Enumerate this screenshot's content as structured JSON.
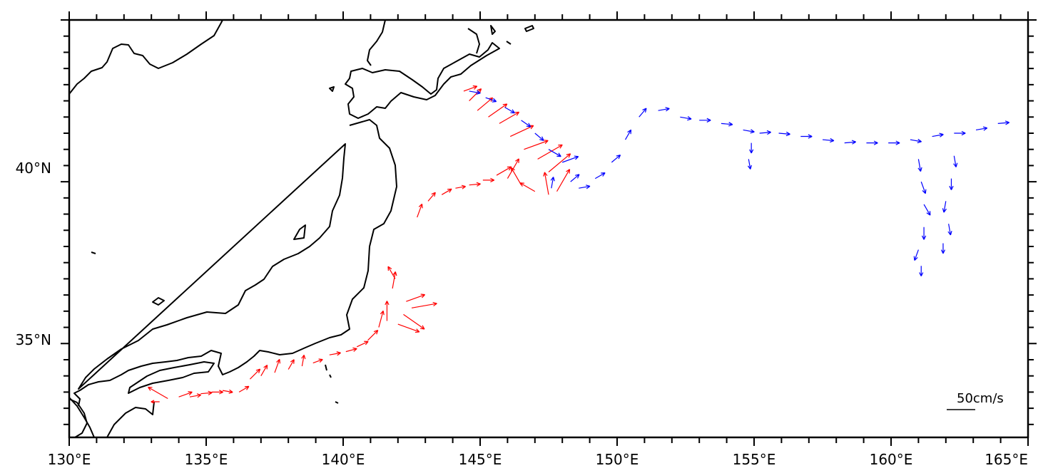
{
  "map": {
    "type": "vector_field_map",
    "region": "Japan and Northwest Pacific",
    "lon_range": [
      130,
      165
    ],
    "lat_range": [
      32.1,
      45.0
    ],
    "x_tick_labels": [
      "130°E",
      "135°E",
      "140°E",
      "145°E",
      "150°E",
      "155°E",
      "160°E",
      "165°E"
    ],
    "y_tick_labels": [
      "35°N",
      "40°N"
    ],
    "scale": {
      "label": "50cm/s",
      "speed_cm_s": 50
    },
    "colors": {
      "series_a": "#ff0000",
      "series_b": "#0000ff",
      "coast": "#000000"
    }
  },
  "chart_data": {
    "type": "scatter",
    "xlabel": "",
    "ylabel": "",
    "xlim": [
      130,
      165
    ],
    "ylim": [
      32.1,
      45.0
    ],
    "series": [
      {
        "color": "#ff0000",
        "points": [
          [
            133.3,
            33.2,
            180,
            15
          ],
          [
            133.6,
            33.3,
            150,
            40
          ],
          [
            134.0,
            33.35,
            20,
            25
          ],
          [
            134.4,
            33.35,
            10,
            20
          ],
          [
            134.8,
            33.45,
            5,
            20
          ],
          [
            135.2,
            33.5,
            0,
            20
          ],
          [
            135.6,
            33.55,
            -10,
            18
          ],
          [
            136.2,
            33.5,
            30,
            20
          ],
          [
            136.6,
            33.9,
            45,
            25
          ],
          [
            137.0,
            34.0,
            60,
            22
          ],
          [
            137.5,
            34.1,
            70,
            25
          ],
          [
            138.0,
            34.2,
            60,
            20
          ],
          [
            138.5,
            34.3,
            80,
            20
          ],
          [
            138.9,
            34.4,
            20,
            18
          ],
          [
            139.5,
            34.65,
            10,
            20
          ],
          [
            140.1,
            34.75,
            15,
            20
          ],
          [
            140.5,
            34.9,
            25,
            22
          ],
          [
            140.9,
            35.1,
            45,
            25
          ],
          [
            141.3,
            35.5,
            75,
            30
          ],
          [
            141.6,
            35.7,
            90,
            35
          ],
          [
            142.0,
            35.6,
            -20,
            40
          ],
          [
            142.2,
            35.9,
            -35,
            45
          ],
          [
            142.5,
            36.1,
            10,
            45
          ],
          [
            142.3,
            36.3,
            20,
            35
          ],
          [
            141.8,
            36.7,
            80,
            30
          ],
          [
            141.9,
            37.0,
            120,
            25
          ],
          [
            142.7,
            38.9,
            70,
            25
          ],
          [
            143.1,
            39.4,
            50,
            20
          ],
          [
            143.6,
            39.6,
            30,
            20
          ],
          [
            144.1,
            39.8,
            10,
            18
          ],
          [
            144.6,
            39.9,
            5,
            20
          ],
          [
            145.1,
            40.05,
            0,
            20
          ],
          [
            145.6,
            40.2,
            30,
            30
          ],
          [
            146.0,
            40.1,
            60,
            40
          ],
          [
            146.5,
            39.9,
            120,
            35
          ],
          [
            147.0,
            39.7,
            150,
            30
          ],
          [
            147.5,
            39.6,
            100,
            40
          ],
          [
            147.8,
            39.7,
            60,
            45
          ],
          [
            147.5,
            40.3,
            40,
            50
          ],
          [
            147.1,
            40.7,
            30,
            50
          ],
          [
            146.6,
            41.0,
            20,
            45
          ],
          [
            146.1,
            41.4,
            25,
            45
          ],
          [
            145.7,
            41.8,
            30,
            40
          ],
          [
            145.3,
            42.0,
            35,
            40
          ],
          [
            144.9,
            42.2,
            40,
            35
          ],
          [
            144.6,
            42.5,
            45,
            30
          ],
          [
            144.4,
            42.8,
            20,
            25
          ]
        ]
      },
      {
        "color": "#0000ff",
        "points": [
          [
            144.6,
            42.8,
            -10,
            20
          ],
          [
            145.2,
            42.6,
            -20,
            20
          ],
          [
            145.9,
            42.3,
            -30,
            20
          ],
          [
            146.5,
            41.9,
            -35,
            20
          ],
          [
            147.0,
            41.5,
            -40,
            20
          ],
          [
            147.5,
            41.0,
            -30,
            25
          ],
          [
            148.0,
            40.6,
            20,
            30
          ],
          [
            148.3,
            40.0,
            40,
            20
          ],
          [
            147.6,
            39.8,
            80,
            20
          ],
          [
            148.6,
            39.8,
            10,
            20
          ],
          [
            149.2,
            40.1,
            30,
            20
          ],
          [
            149.8,
            40.6,
            40,
            20
          ],
          [
            150.3,
            41.3,
            60,
            20
          ],
          [
            150.8,
            42.0,
            50,
            20
          ],
          [
            151.5,
            42.2,
            10,
            20
          ],
          [
            152.3,
            42.0,
            -10,
            20
          ],
          [
            153.0,
            41.9,
            0,
            20
          ],
          [
            153.8,
            41.8,
            -5,
            20
          ],
          [
            154.6,
            41.6,
            -10,
            20
          ],
          [
            155.2,
            41.5,
            5,
            20
          ],
          [
            155.9,
            41.5,
            -5,
            20
          ],
          [
            156.7,
            41.4,
            0,
            20
          ],
          [
            157.5,
            41.3,
            -5,
            20
          ],
          [
            158.3,
            41.2,
            5,
            20
          ],
          [
            159.1,
            41.2,
            0,
            20
          ],
          [
            159.9,
            41.2,
            0,
            20
          ],
          [
            160.7,
            41.3,
            -10,
            20
          ],
          [
            161.5,
            41.4,
            10,
            20
          ],
          [
            162.3,
            41.5,
            0,
            20
          ],
          [
            163.1,
            41.6,
            10,
            20
          ],
          [
            163.9,
            41.8,
            5,
            20
          ],
          [
            154.9,
            41.2,
            -90,
            18
          ],
          [
            154.8,
            40.7,
            -80,
            18
          ],
          [
            161.0,
            40.7,
            -80,
            22
          ],
          [
            161.1,
            40.0,
            -70,
            22
          ],
          [
            161.2,
            39.3,
            -60,
            22
          ],
          [
            161.2,
            38.6,
            -90,
            22
          ],
          [
            161.0,
            37.9,
            -110,
            20
          ],
          [
            161.1,
            37.4,
            -90,
            18
          ],
          [
            162.3,
            40.8,
            -80,
            20
          ],
          [
            162.2,
            40.1,
            -90,
            20
          ],
          [
            162.0,
            39.4,
            -100,
            20
          ],
          [
            162.1,
            38.7,
            -80,
            20
          ],
          [
            161.9,
            38.1,
            -90,
            18
          ]
        ]
      }
    ]
  }
}
